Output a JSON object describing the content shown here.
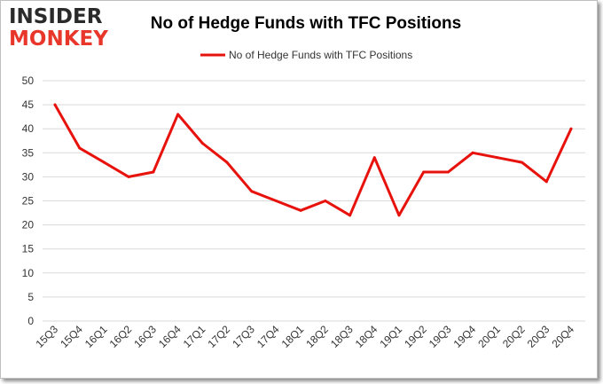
{
  "header": {
    "logo_top": "INSIDER",
    "logo_bottom": "MONKEY"
  },
  "colors": {
    "series": "#e8120c",
    "grid": "#d9d9d9",
    "logo_dark": "#2a2a2a",
    "logo_red": "#e8362a"
  },
  "chart_data": {
    "type": "line",
    "title": "No of Hedge Funds with TFC Positions",
    "xlabel": "",
    "ylabel": "",
    "ylim": [
      0,
      50
    ],
    "yticks": [
      0,
      5,
      10,
      15,
      20,
      25,
      30,
      35,
      40,
      45,
      50
    ],
    "grid": true,
    "legend_position": "top-center",
    "categories": [
      "15Q3",
      "15Q4",
      "16Q1",
      "16Q2",
      "16Q3",
      "16Q4",
      "17Q1",
      "17Q2",
      "17Q3",
      "17Q4",
      "18Q1",
      "18Q2",
      "18Q3",
      "18Q4",
      "19Q1",
      "19Q2",
      "19Q3",
      "19Q4",
      "20Q1",
      "20Q2",
      "20Q3",
      "20Q4"
    ],
    "series": [
      {
        "name": "No of Hedge Funds with TFC Positions",
        "values": [
          45,
          36,
          33,
          30,
          31,
          43,
          37,
          33,
          27,
          25,
          23,
          25,
          22,
          34,
          22,
          31,
          31,
          35,
          34,
          33,
          29,
          40
        ]
      }
    ]
  }
}
